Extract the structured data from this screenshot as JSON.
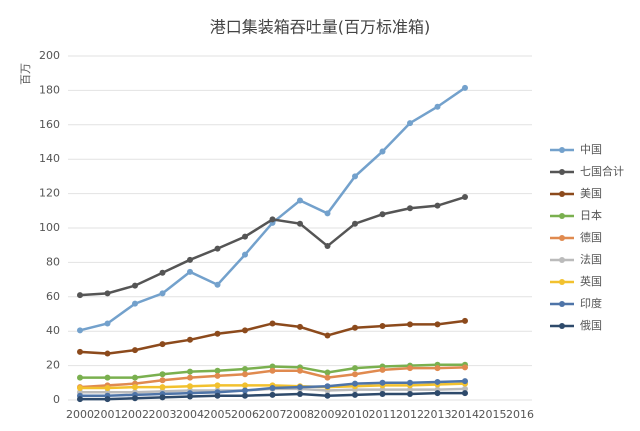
{
  "chart_data": {
    "type": "line",
    "title": "港口集装箱吞吐量(百万标准箱)",
    "y_label": "百万",
    "categories": [
      "2000",
      "2001",
      "2002",
      "2003",
      "2004",
      "2005",
      "2006",
      "2007",
      "2008",
      "2009",
      "2010",
      "2011",
      "2012",
      "2013",
      "2014",
      "2015",
      "2016"
    ],
    "ylim": [
      0,
      200
    ],
    "yticks": [
      0,
      20,
      40,
      60,
      80,
      100,
      120,
      140,
      160,
      180,
      200
    ],
    "grid": true,
    "legend": "right",
    "series": [
      {
        "name": "中国",
        "color": "#73a1cc",
        "values": [
          40.5,
          44.5,
          56,
          62,
          74.5,
          67,
          84.5,
          103,
          116,
          108.5,
          130,
          144.5,
          161,
          170.5,
          181.5,
          null,
          null
        ]
      },
      {
        "name": "七国合计",
        "color": "#555555",
        "values": [
          61,
          62,
          66.5,
          74,
          81.5,
          88,
          95,
          105,
          102.5,
          89.5,
          102.5,
          108,
          111.5,
          113,
          118,
          null,
          null
        ]
      },
      {
        "name": "美国",
        "color": "#8c4a1c",
        "values": [
          28,
          27,
          29,
          32.5,
          35,
          38.5,
          40.5,
          44.5,
          42.5,
          37.5,
          42,
          43,
          44,
          44,
          46,
          null,
          null
        ]
      },
      {
        "name": "日本",
        "color": "#7ab04f",
        "values": [
          13,
          13,
          13,
          15,
          16.5,
          17,
          18,
          19.5,
          19,
          16,
          18.5,
          19.5,
          20,
          20.5,
          20.5,
          null,
          null
        ]
      },
      {
        "name": "德国",
        "color": "#e08a4f",
        "values": [
          7.5,
          8.5,
          9.5,
          11.5,
          13,
          14,
          15,
          17,
          17,
          13,
          15,
          17.5,
          18.5,
          18.5,
          19,
          null,
          null
        ]
      },
      {
        "name": "法国",
        "color": "#bbbbbb",
        "values": [
          4.5,
          4.5,
          4.5,
          5,
          5.5,
          5.5,
          5.5,
          6.5,
          6.5,
          5.5,
          6,
          6,
          6,
          6,
          6.5,
          null,
          null
        ]
      },
      {
        "name": "英国",
        "color": "#f2c12e",
        "values": [
          7,
          7,
          7.5,
          7.5,
          8,
          8.5,
          8.5,
          8.5,
          8,
          7.5,
          8,
          8.5,
          8.5,
          9,
          9.5,
          null,
          null
        ]
      },
      {
        "name": "印度",
        "color": "#4e74a8",
        "values": [
          2.5,
          2.5,
          3,
          3.5,
          4,
          4.5,
          5.5,
          7,
          7.5,
          8,
          9.5,
          10,
          10,
          10.5,
          11,
          null,
          null
        ]
      },
      {
        "name": "俄国",
        "color": "#2e4a6b",
        "values": [
          0.5,
          0.5,
          1,
          1.5,
          2,
          2.5,
          2.5,
          3,
          3.5,
          2.5,
          3,
          3.5,
          3.5,
          4,
          4,
          null,
          null
        ]
      }
    ]
  }
}
